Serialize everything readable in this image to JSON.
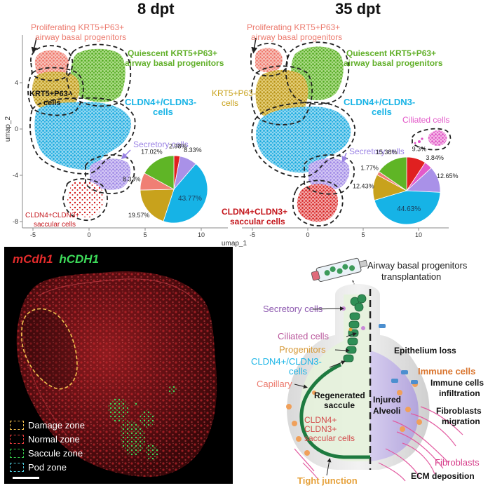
{
  "panels": {
    "left_title": "8 dpt",
    "right_title": "35 dpt"
  },
  "umap_axes": {
    "x_label": "umap_1",
    "y_label": "umap_2",
    "left_y_ticks": [
      "4",
      "0",
      "-4",
      "-8"
    ],
    "left_x_ticks": [
      "-5",
      "0",
      "5",
      "10"
    ],
    "right_x_ticks": [
      "-5",
      "0",
      "5",
      "10"
    ]
  },
  "umap_left": {
    "prolif_l1": "Proliferating KRT5+P63+",
    "prolif_l2": "airway basal progenitors",
    "quies_l1": "Quiescent KRT5+P63+",
    "quies_l2": "airway basal progenitors",
    "krt5_l1": "KRT5+P63-",
    "krt5_l2": "cells",
    "cldn_l1": "CLDN4+/CLDN3-",
    "cldn_l2": "cells",
    "secretory": "Secretory cells",
    "cldn33_l1": "CLDN4+CLDN3+",
    "cldn33_l2": "saccular cells"
  },
  "umap_right": {
    "prolif_l1": "Proliferating KRT5+P63+",
    "prolif_l2": "airway basal progenitors",
    "quies_l1": "Quiescent KRT5+P63+",
    "quies_l2": "airway basal progenitors",
    "krt5_l1": "KRT5+P63-",
    "krt5_l2": "cells",
    "cldn_l1": "CLDN4+/CLDN3-",
    "cldn_l2": "cells",
    "ciliated": "Ciliated cells",
    "secretory": "Secretory cells",
    "cldn33_l1": "CLDN4+CLDN3+",
    "cldn33_l2": "saccular cells"
  },
  "chart_data": [
    {
      "type": "pie",
      "panel": "8 dpt",
      "slices": [
        {
          "label": "2.98%",
          "value": 2.98,
          "color": "#e02020"
        },
        {
          "label": "8.33%",
          "value": 8.33,
          "color": "#a991e8"
        },
        {
          "label": "43.77%",
          "value": 43.77,
          "color": "#16b3e6"
        },
        {
          "label": "19.57%",
          "value": 19.57,
          "color": "#c8a21c"
        },
        {
          "label": "8.33%",
          "value": 8.33,
          "color": "#f07f74"
        },
        {
          "label": "17.02%",
          "value": 17.02,
          "color": "#5fb526"
        }
      ]
    },
    {
      "type": "pie",
      "panel": "35 dpt",
      "slices": [
        {
          "label": "9.3%",
          "value": 9.3,
          "color": "#e02020"
        },
        {
          "label": "3.84%",
          "value": 3.84,
          "color": "#e35ac9"
        },
        {
          "label": "12.65%",
          "value": 12.65,
          "color": "#a991e8"
        },
        {
          "label": "44.63%",
          "value": 44.63,
          "color": "#16b3e6"
        },
        {
          "label": "12.43%",
          "value": 12.43,
          "color": "#c8a21c"
        },
        {
          "label": "1.77%",
          "value": 1.77,
          "color": "#f07f74"
        },
        {
          "label": "15.38%",
          "value": 15.38,
          "color": "#5fb526"
        }
      ]
    }
  ],
  "micrograph": {
    "title_red": "mCdh1",
    "title_green": "hCDH1",
    "legend": [
      {
        "label": "Damage zone",
        "color": "#f2c14e"
      },
      {
        "label": "Normal zone",
        "color": "#e33b3b"
      },
      {
        "label": "Saccule zone",
        "color": "#35c449"
      },
      {
        "label": "Pod zone",
        "color": "#4dc6d6"
      }
    ]
  },
  "schematic": {
    "transplant_l1": "Airway basal progenitors",
    "transplant_l2": "transplantation",
    "secretory": "Secretory cells",
    "ciliated": "Ciliated cells",
    "progenitors": "Progenitors",
    "cldn_l1": "CLDN4+/CLDN3-",
    "cldn_l2": "cells",
    "capillary": "Capillary",
    "regen_l1": "Regenerated",
    "regen_l2": "saccule",
    "sacc_l1": "CLDN4+",
    "sacc_l2": "CLDN3+",
    "sacc_l3": "saccular cells",
    "tight": "Tight junction",
    "epith_loss": "Epithelium loss",
    "injured_l1": "Injured",
    "injured_l2": "Alveoli",
    "immune": "Immune cells",
    "infil_l1": "Immune cells",
    "infil_l2": "infiltration",
    "fibro_mig_l1": "Fibroblasts",
    "fibro_mig_l2": "migration",
    "fibroblasts": "Fibroblasts",
    "ecm": "ECM deposition"
  }
}
